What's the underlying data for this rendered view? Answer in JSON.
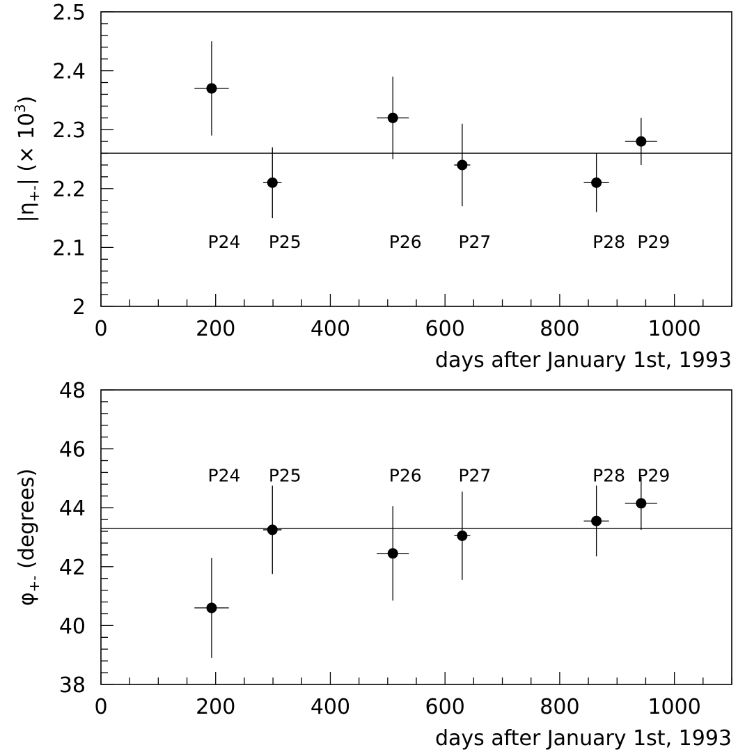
{
  "chart_data": [
    {
      "type": "scatter",
      "title": "",
      "xlabel": "days after January 1st, 1993",
      "ylabel_main": "|η",
      "ylabel_sub": "+-",
      "ylabel_mid": "| (× 10",
      "ylabel_sup": "3",
      "ylabel_end": ")",
      "xlim": [
        0,
        1100
      ],
      "ylim": [
        2.0,
        2.5
      ],
      "x_ticks": [
        0,
        200,
        400,
        600,
        800,
        1000
      ],
      "x_tick_labels": [
        "0",
        "200",
        "400",
        "600",
        "800",
        "1000"
      ],
      "y_ticks": [
        2.0,
        2.1,
        2.2,
        2.3,
        2.4,
        2.5
      ],
      "y_tick_labels": [
        "2",
        "2.1",
        "2.2",
        "2.3",
        "2.4",
        "2.5"
      ],
      "x_minor_step": 50,
      "y_minor_step": 0.02,
      "fit_value": 2.26,
      "label_y": 2.11,
      "series": [
        {
          "points": [
            {
              "label": "P24",
              "x": 193,
              "y": 2.37,
              "xerr": 30,
              "yerr": 0.08
            },
            {
              "label": "P25",
              "x": 299,
              "y": 2.21,
              "xerr": 16,
              "yerr": 0.06
            },
            {
              "label": "P26",
              "x": 509,
              "y": 2.32,
              "xerr": 28,
              "yerr": 0.07
            },
            {
              "label": "P27",
              "x": 630,
              "y": 2.24,
              "xerr": 14,
              "yerr": 0.07
            },
            {
              "label": "P28",
              "x": 864,
              "y": 2.21,
              "xerr": 22,
              "yerr": 0.05
            },
            {
              "label": "P29",
              "x": 942,
              "y": 2.28,
              "xerr": 28,
              "yerr": 0.04
            }
          ]
        }
      ]
    },
    {
      "type": "scatter",
      "title": "",
      "xlabel": "days after January 1st, 1993",
      "ylabel_main": "φ",
      "ylabel_sub": "+-",
      "ylabel_mid": " (degrees)",
      "ylabel_sup": "",
      "ylabel_end": "",
      "xlim": [
        0,
        1100
      ],
      "ylim": [
        38,
        48
      ],
      "x_ticks": [
        0,
        200,
        400,
        600,
        800,
        1000
      ],
      "x_tick_labels": [
        "0",
        "200",
        "400",
        "600",
        "800",
        "1000"
      ],
      "y_ticks": [
        38,
        40,
        42,
        44,
        46,
        48
      ],
      "y_tick_labels": [
        "38",
        "40",
        "42",
        "44",
        "46",
        "48"
      ],
      "x_minor_step": 50,
      "y_minor_step": 0.4,
      "fit_value": 43.3,
      "label_y": 45.1,
      "series": [
        {
          "points": [
            {
              "label": "P24",
              "x": 193,
              "y": 40.6,
              "xerr": 30,
              "yerr": 1.7
            },
            {
              "label": "P25",
              "x": 299,
              "y": 43.25,
              "xerr": 16,
              "yerr": 1.5
            },
            {
              "label": "P26",
              "x": 509,
              "y": 42.45,
              "xerr": 28,
              "yerr": 1.6
            },
            {
              "label": "P27",
              "x": 630,
              "y": 43.05,
              "xerr": 14,
              "yerr": 1.5
            },
            {
              "label": "P28",
              "x": 864,
              "y": 43.55,
              "xerr": 22,
              "yerr": 1.2
            },
            {
              "label": "P29",
              "x": 942,
              "y": 44.15,
              "xerr": 28,
              "yerr": 0.9
            }
          ]
        }
      ]
    }
  ]
}
